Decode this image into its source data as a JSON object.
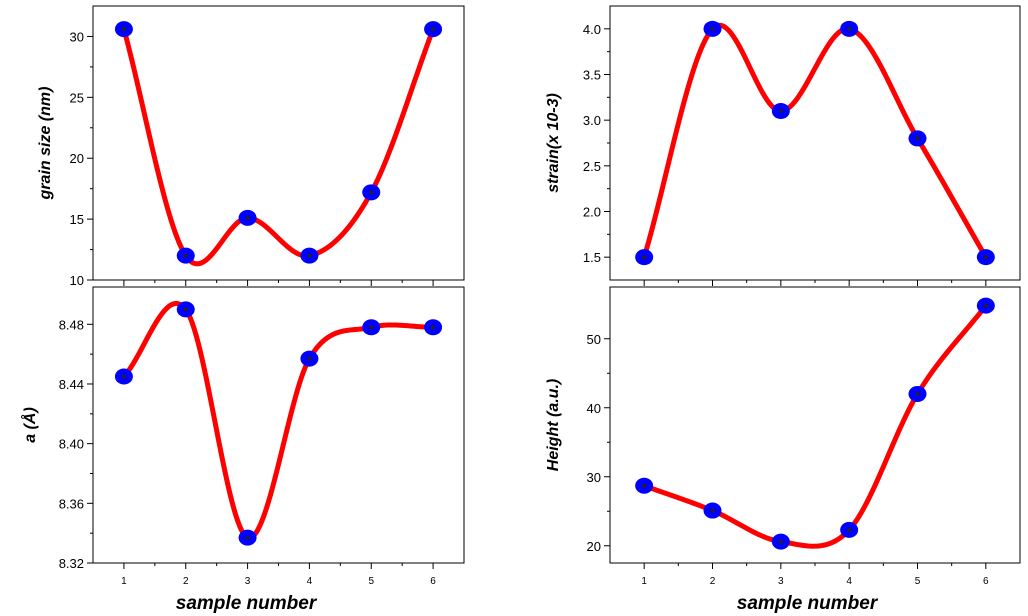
{
  "x_axis_label": "sample number",
  "chart_data": [
    {
      "type": "line",
      "panel": "top-left",
      "ylabel": "grain size (nm)",
      "xlabel": "",
      "x": [
        1,
        2,
        3,
        4,
        5,
        6
      ],
      "y": [
        30.6,
        12.0,
        15.1,
        12.0,
        17.2,
        30.6
      ],
      "xlim": [
        0.5,
        6.5
      ],
      "ylim": [
        10,
        32.5
      ],
      "yticks": [
        10,
        15,
        20,
        25,
        30
      ],
      "ytick_labels": [
        "10",
        "15",
        "20",
        "25",
        "30"
      ],
      "xticks": [
        1,
        2,
        3,
        4,
        5,
        6
      ],
      "xtick_labels": [],
      "line_color": "#ff0000",
      "marker_color": "#0000ff",
      "grid": false
    },
    {
      "type": "line",
      "panel": "top-right",
      "ylabel": "strain(x 10-3)",
      "xlabel": "",
      "x": [
        1,
        2,
        3,
        4,
        5,
        6
      ],
      "y": [
        1.5,
        4.0,
        3.1,
        4.0,
        2.8,
        1.5
      ],
      "xlim": [
        0.5,
        6.5
      ],
      "ylim": [
        1.25,
        4.25
      ],
      "yticks": [
        1.5,
        2.0,
        2.5,
        3.0,
        3.5,
        4.0
      ],
      "ytick_labels": [
        "1.5",
        "2.0",
        "2.5",
        "3.0",
        "3.5",
        "4.0"
      ],
      "xticks": [
        1,
        2,
        3,
        4,
        5,
        6
      ],
      "xtick_labels": [],
      "line_color": "#ff0000",
      "marker_color": "#0000ff",
      "grid": false
    },
    {
      "type": "line",
      "panel": "bottom-left",
      "ylabel": "a (Å)",
      "xlabel": "sample number",
      "x": [
        1,
        2,
        3,
        4,
        5,
        6
      ],
      "y": [
        8.445,
        8.49,
        8.337,
        8.457,
        8.478,
        8.478
      ],
      "xlim": [
        0.5,
        6.5
      ],
      "ylim": [
        8.32,
        8.505
      ],
      "yticks": [
        8.32,
        8.36,
        8.4,
        8.44,
        8.48
      ],
      "ytick_labels": [
        "8.32",
        "8.36",
        "8.40",
        "8.44",
        "8.48"
      ],
      "xticks": [
        1,
        2,
        3,
        4,
        5,
        6
      ],
      "xtick_labels": [
        "1",
        "2",
        "3",
        "4",
        "5",
        "6"
      ],
      "line_color": "#ff0000",
      "marker_color": "#0000ff",
      "grid": false
    },
    {
      "type": "line",
      "panel": "bottom-right",
      "ylabel": "Height (a.u.)",
      "xlabel": "sample number",
      "x": [
        1,
        2,
        3,
        4,
        5,
        6
      ],
      "y": [
        28.7,
        25.1,
        20.6,
        22.3,
        42.0,
        54.8
      ],
      "xlim": [
        0.5,
        6.5
      ],
      "ylim": [
        17.5,
        57.5
      ],
      "yticks": [
        20,
        30,
        40,
        50
      ],
      "ytick_labels": [
        "20",
        "30",
        "40",
        "50"
      ],
      "xticks": [
        1,
        2,
        3,
        4,
        5,
        6
      ],
      "xtick_labels": [
        "1",
        "2",
        "3",
        "4",
        "5",
        "6"
      ],
      "line_color": "#ff0000",
      "marker_color": "#0000ff",
      "grid": false
    }
  ]
}
